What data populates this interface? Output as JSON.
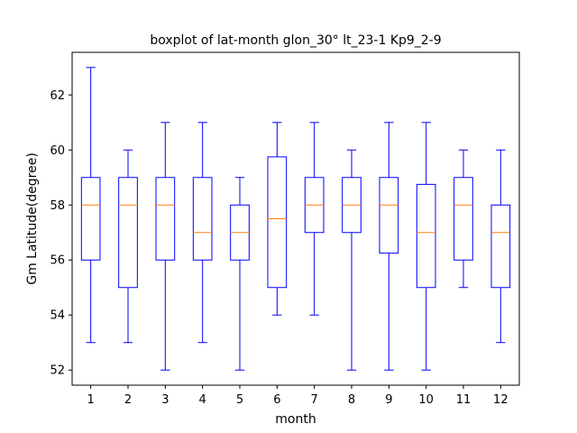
{
  "chart_data": {
    "type": "boxplot",
    "title": "boxplot of lat-month glon_30° lt_23-1 Kp9_2-9",
    "xlabel": "month",
    "ylabel": "Gm Latitude(degree)",
    "categories": [
      "1",
      "2",
      "3",
      "4",
      "5",
      "6",
      "7",
      "8",
      "9",
      "10",
      "11",
      "12"
    ],
    "yticks": [
      52,
      54,
      56,
      58,
      60,
      62
    ],
    "ylim": [
      51.45,
      63.55
    ],
    "grid": false,
    "legend": "none",
    "colors": {
      "box": "#0000ff",
      "median": "#ff7f0e",
      "frame": "#000000"
    },
    "boxes": [
      {
        "whisker_low": 53,
        "q1": 56,
        "median": 58,
        "q3": 59,
        "whisker_high": 63
      },
      {
        "whisker_low": 53,
        "q1": 55,
        "median": 58,
        "q3": 59,
        "whisker_high": 60
      },
      {
        "whisker_low": 52,
        "q1": 56,
        "median": 58,
        "q3": 59,
        "whisker_high": 61
      },
      {
        "whisker_low": 53,
        "q1": 56,
        "median": 57,
        "q3": 59,
        "whisker_high": 61
      },
      {
        "whisker_low": 52,
        "q1": 56,
        "median": 57,
        "q3": 58,
        "whisker_high": 59
      },
      {
        "whisker_low": 54,
        "q1": 55,
        "median": 57.5,
        "q3": 59.75,
        "whisker_high": 61
      },
      {
        "whisker_low": 54,
        "q1": 57,
        "median": 58,
        "q3": 59,
        "whisker_high": 61
      },
      {
        "whisker_low": 52,
        "q1": 57,
        "median": 58,
        "q3": 59,
        "whisker_high": 60
      },
      {
        "whisker_low": 52,
        "q1": 56.25,
        "median": 58,
        "q3": 59,
        "whisker_high": 61
      },
      {
        "whisker_low": 52,
        "q1": 55,
        "median": 57,
        "q3": 58.75,
        "whisker_high": 61
      },
      {
        "whisker_low": 55,
        "q1": 56,
        "median": 58,
        "q3": 59,
        "whisker_high": 60
      },
      {
        "whisker_low": 53,
        "q1": 55,
        "median": 57,
        "q3": 58,
        "whisker_high": 60
      }
    ]
  }
}
